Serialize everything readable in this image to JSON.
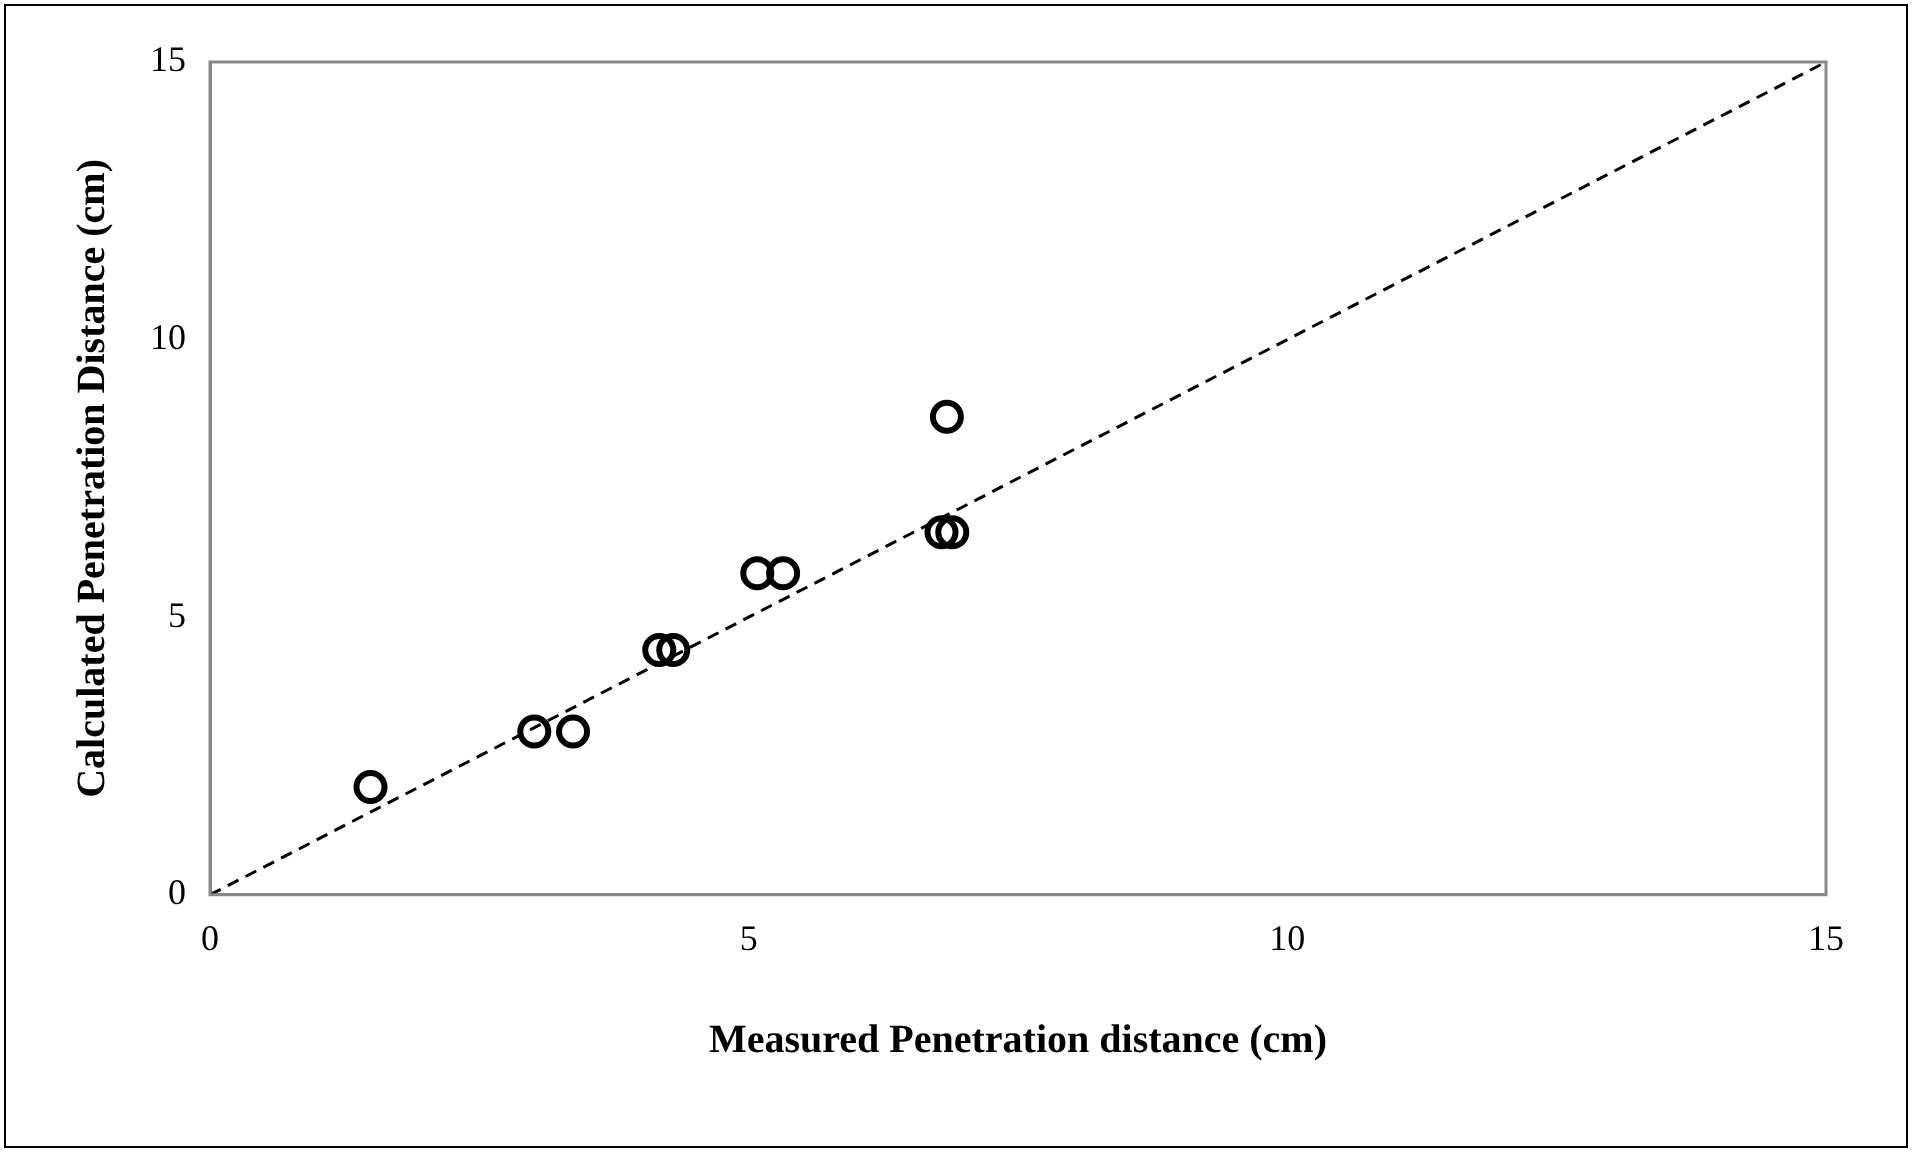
{
  "chart_data": {
    "type": "scatter",
    "xlabel": "Measured Penetration distance (cm)",
    "ylabel": "Calculated Penetration Distance (cm)",
    "xlim": [
      0,
      15
    ],
    "ylim": [
      0,
      15
    ],
    "xticks": [
      0,
      5,
      10,
      15
    ],
    "yticks": [
      0,
      5,
      10,
      15
    ],
    "grid": false,
    "legend": false,
    "marker": "circle",
    "series": [
      {
        "type": "scatter",
        "color": "#000000",
        "x": [
          1.49,
          3.01,
          3.37,
          4.17,
          4.3,
          5.08,
          5.32,
          6.84,
          6.79,
          6.89
        ],
        "values": [
          1.94,
          2.94,
          2.94,
          4.41,
          4.41,
          5.79,
          5.79,
          8.61,
          6.53,
          6.53
        ]
      },
      {
        "type": "line",
        "color": "#000000",
        "line_style": "dashed",
        "marker": "none",
        "x": [
          0,
          15
        ],
        "values": [
          0,
          15
        ]
      }
    ]
  }
}
